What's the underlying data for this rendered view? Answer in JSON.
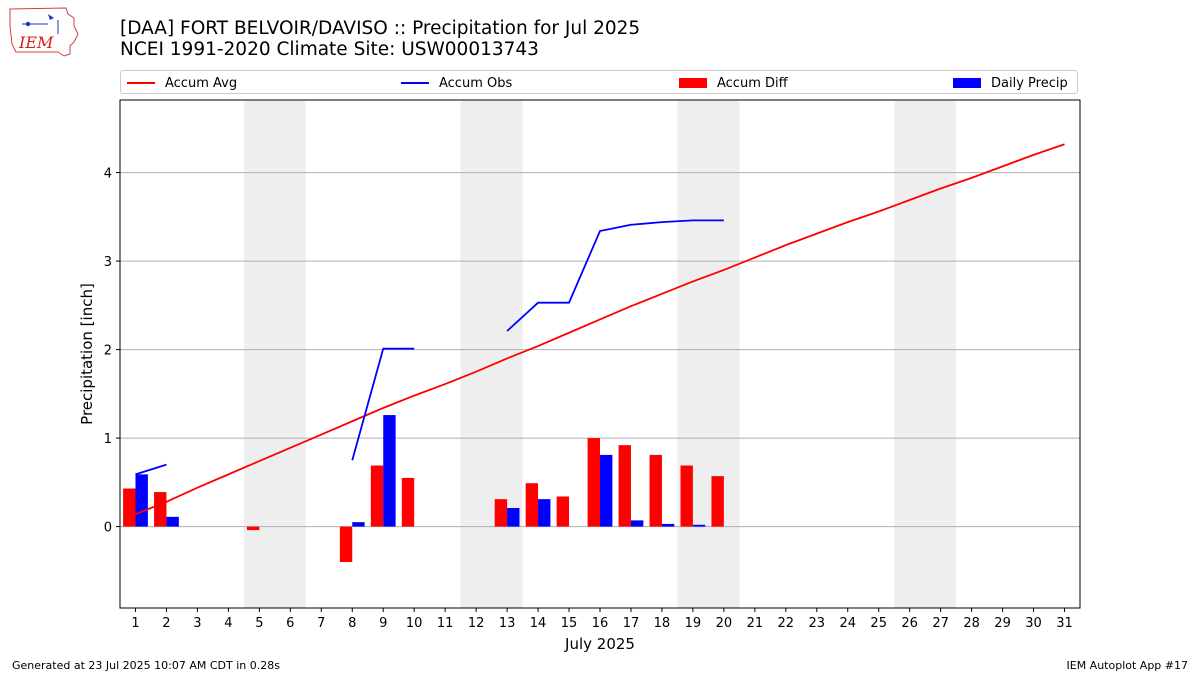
{
  "logo_text": "IEM",
  "header": {
    "title_line1": "[DAA] FORT BELVOIR/DAVISO :: Precipitation for Jul 2025",
    "title_line2": "NCEI 1991-2020 Climate Site: USW00013743"
  },
  "footer": {
    "left": "Generated at 23 Jul 2025 10:07 AM CDT in 0.28s",
    "right": "IEM Autoplot App #17"
  },
  "colors": {
    "accum_avg": "#ff0000",
    "accum_obs": "#0000ff",
    "accum_diff": "#ff0000",
    "daily_precip": "#0000ff",
    "weekend_band": "#eeeeee",
    "grid": "#b0b0b0"
  },
  "legend": [
    {
      "label": "Accum Avg",
      "kind": "line",
      "color": "#ff0000"
    },
    {
      "label": "Accum Obs",
      "kind": "line",
      "color": "#0000ff"
    },
    {
      "label": "Accum Diff",
      "kind": "patch",
      "color": "#ff0000"
    },
    {
      "label": "Daily Precip",
      "kind": "patch",
      "color": "#0000ff"
    }
  ],
  "chart_data": {
    "type": "bar",
    "xlabel": "July 2025",
    "ylabel": "Precipitation [inch]",
    "xlim": [
      0.5,
      31.5
    ],
    "ylim": [
      -0.92,
      4.82
    ],
    "x_ticks": [
      1,
      2,
      3,
      4,
      5,
      6,
      7,
      8,
      9,
      10,
      11,
      12,
      13,
      14,
      15,
      16,
      17,
      18,
      19,
      20,
      21,
      22,
      23,
      24,
      25,
      26,
      27,
      28,
      29,
      30,
      31
    ],
    "y_ticks": [
      0,
      1,
      2,
      3,
      4
    ],
    "grid": "horizontal",
    "legend_position": "top",
    "weekend_bands": [
      [
        4.5,
        6.5
      ],
      [
        11.5,
        13.5
      ],
      [
        18.5,
        20.5
      ],
      [
        25.5,
        27.5
      ]
    ],
    "days": [
      1,
      2,
      3,
      4,
      5,
      6,
      7,
      8,
      9,
      10,
      11,
      12,
      13,
      14,
      15,
      16,
      17,
      18,
      19,
      20,
      21,
      22,
      23,
      24,
      25,
      26,
      27,
      28,
      29,
      30,
      31
    ],
    "series": [
      {
        "name": "Accum Avg",
        "type": "line",
        "values": [
          0.14,
          0.28,
          0.44,
          0.59,
          0.74,
          0.89,
          1.04,
          1.19,
          1.34,
          1.48,
          1.61,
          1.75,
          1.9,
          2.04,
          2.19,
          2.34,
          2.49,
          2.63,
          2.77,
          2.9,
          3.04,
          3.18,
          3.31,
          3.44,
          3.56,
          3.69,
          3.82,
          3.94,
          4.07,
          4.2,
          4.32
        ]
      },
      {
        "name": "Accum Obs",
        "type": "line",
        "segments": [
          {
            "x": [
              1,
              2
            ],
            "y": [
              0.59,
              0.7
            ]
          },
          {
            "x": [
              8,
              9,
              10
            ],
            "y": [
              0.75,
              2.01,
              2.01
            ]
          },
          {
            "x": [
              13,
              14,
              15,
              16,
              17,
              18,
              19,
              20
            ],
            "y": [
              2.21,
              2.53,
              2.53,
              3.34,
              3.41,
              3.44,
              3.46,
              3.46
            ]
          }
        ]
      },
      {
        "name": "Accum Diff",
        "type": "bar",
        "x": [
          1,
          2,
          5,
          8,
          9,
          10,
          13,
          14,
          15,
          16,
          17,
          18,
          19,
          20
        ],
        "values": [
          0.43,
          0.39,
          -0.04,
          -0.4,
          0.69,
          0.55,
          0.31,
          0.49,
          0.34,
          1.0,
          0.92,
          0.81,
          0.69,
          0.57
        ]
      },
      {
        "name": "Daily Precip",
        "type": "bar",
        "x": [
          1,
          2,
          8,
          9,
          13,
          14,
          16,
          17,
          18,
          19
        ],
        "values": [
          0.59,
          0.11,
          0.05,
          1.26,
          0.21,
          0.31,
          0.81,
          0.07,
          0.03,
          0.02
        ]
      }
    ]
  }
}
